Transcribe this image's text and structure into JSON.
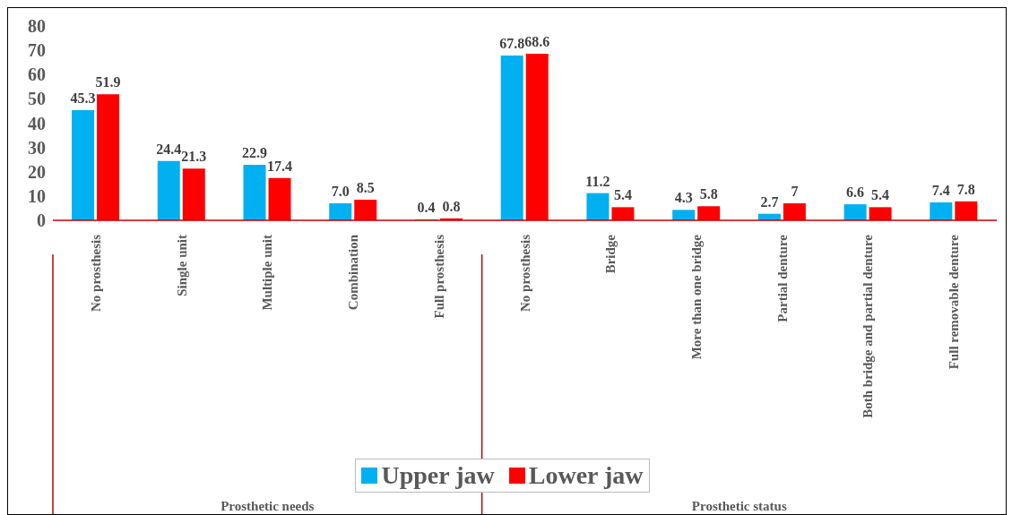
{
  "chart_data": {
    "type": "bar",
    "categories": [
      "No prosthesis",
      "Single unit",
      "Multiple unit",
      "Combination",
      "Full prosthesis",
      "No prosthesis",
      "Bridge",
      "More than one bridge",
      "Partial denture",
      "Both bridge and partial denture",
      "Full removable denture"
    ],
    "series": [
      {
        "name": "Upper jaw",
        "color": "#00b0f0",
        "values": [
          45.3,
          24.4,
          22.9,
          7.0,
          0.4,
          67.8,
          11.2,
          4.3,
          2.7,
          6.6,
          7.4
        ],
        "value_labels": [
          "45.3",
          "24.4",
          "22.9",
          "7.0",
          "0.4",
          "67.8",
          "11.2",
          "4.3",
          "2.7",
          "6.6",
          "7.4"
        ]
      },
      {
        "name": "Lower jaw",
        "color": "#ff0000",
        "values": [
          51.9,
          21.3,
          17.4,
          8.5,
          0.8,
          68.6,
          5.4,
          5.8,
          7,
          5.4,
          7.8
        ],
        "value_labels": [
          "51.9",
          "21.3",
          "17.4",
          "8.5",
          "0.8",
          "68.6",
          "5.4",
          "5.8",
          "7",
          "5.4",
          "7.8"
        ]
      }
    ],
    "ylim": [
      0,
      80
    ],
    "yticks": [
      0,
      10,
      20,
      30,
      40,
      50,
      60,
      70,
      80
    ],
    "legend": "bottom",
    "annotations": [
      "Prosthetic needs",
      "Prosthetic status"
    ]
  }
}
